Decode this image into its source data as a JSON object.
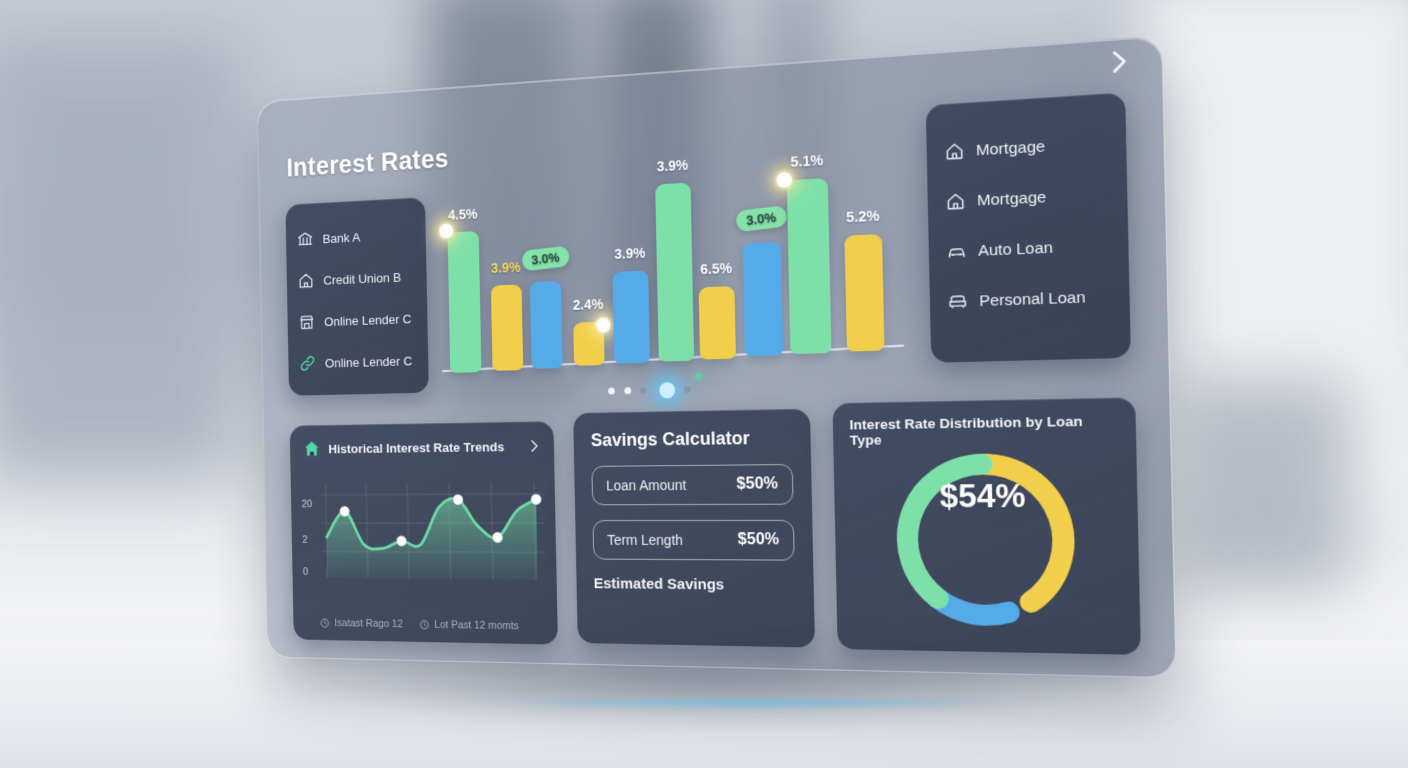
{
  "header": {
    "title": "Interest Rates"
  },
  "colors": {
    "green": "#7ee0a9",
    "yellow": "#f1cf4a",
    "blue": "#55abe8",
    "teal": "#4fd9a6"
  },
  "lenders": {
    "items": [
      {
        "label": "Bank A",
        "icon": "bank-icon"
      },
      {
        "label": "Credit Union B",
        "icon": "credit-union-icon"
      },
      {
        "label": "Online Lender C",
        "icon": "storefront-icon"
      },
      {
        "label": "Online Lender C",
        "icon": "link-icon"
      }
    ]
  },
  "loan_types": {
    "items": [
      {
        "label": "Mortgage",
        "icon": "house-icon"
      },
      {
        "label": "Mortgage",
        "icon": "house-icon"
      },
      {
        "label": "Auto Loan",
        "icon": "car-icon"
      },
      {
        "label": "Personal Loan",
        "icon": "sofa-icon"
      }
    ]
  },
  "chart_data": [
    {
      "type": "bar",
      "title": "Interest Rates",
      "values": [
        4.5,
        3.9,
        3.0,
        2.4,
        3.9,
        3.9,
        6.5,
        3.0,
        5.1,
        5.2
      ],
      "labels": [
        "4.5%",
        "3.9%",
        "3.0%",
        "2.4%",
        "3.9%",
        "3.9%",
        "6.5%",
        "3.0%",
        "5.1%",
        "5.2%"
      ],
      "bar_colors": [
        "green",
        "yellow",
        "blue",
        "yellow",
        "blue",
        "green",
        "yellow",
        "blue",
        "green",
        "yellow"
      ],
      "label_styles": [
        "plain",
        "yellow",
        "pill",
        "plain",
        "plain",
        "plain",
        "plain",
        "pill",
        "plain",
        "plain"
      ],
      "highlight_dots": [
        0,
        3,
        8
      ],
      "pagination": {
        "count": 5,
        "active": 3
      }
    },
    {
      "type": "area",
      "title": "Historical Interest Rate Trends",
      "values": [
        9,
        16,
        7,
        6,
        8,
        7,
        17,
        19,
        12,
        9,
        16,
        19
      ],
      "dot_indices": [
        1,
        4,
        7,
        9,
        11
      ],
      "ylim": [
        0,
        22
      ],
      "y_ticks": [
        "20",
        "2",
        "0"
      ],
      "x_labels": [
        {
          "icon": "clock-icon",
          "label": "Isatast Rago 12"
        },
        {
          "icon": "clock-icon",
          "label": "Lot Past 12 momts"
        }
      ]
    },
    {
      "type": "donut",
      "title": "Interest Rate Distribution by Loan Type",
      "center_label": "$54%",
      "segments": [
        {
          "color": "yellow",
          "start": 0,
          "end": 145
        },
        {
          "color": "blue",
          "start": 163,
          "end": 218
        },
        {
          "color": "green",
          "start": 218,
          "end": 360
        }
      ]
    }
  ],
  "savings_calculator": {
    "title": "Savings Calculator",
    "fields": [
      {
        "label": "Loan Amount",
        "value": "$50%"
      },
      {
        "label": "Term Length",
        "value": "$50%"
      }
    ],
    "footer": "Estimated Savings"
  }
}
